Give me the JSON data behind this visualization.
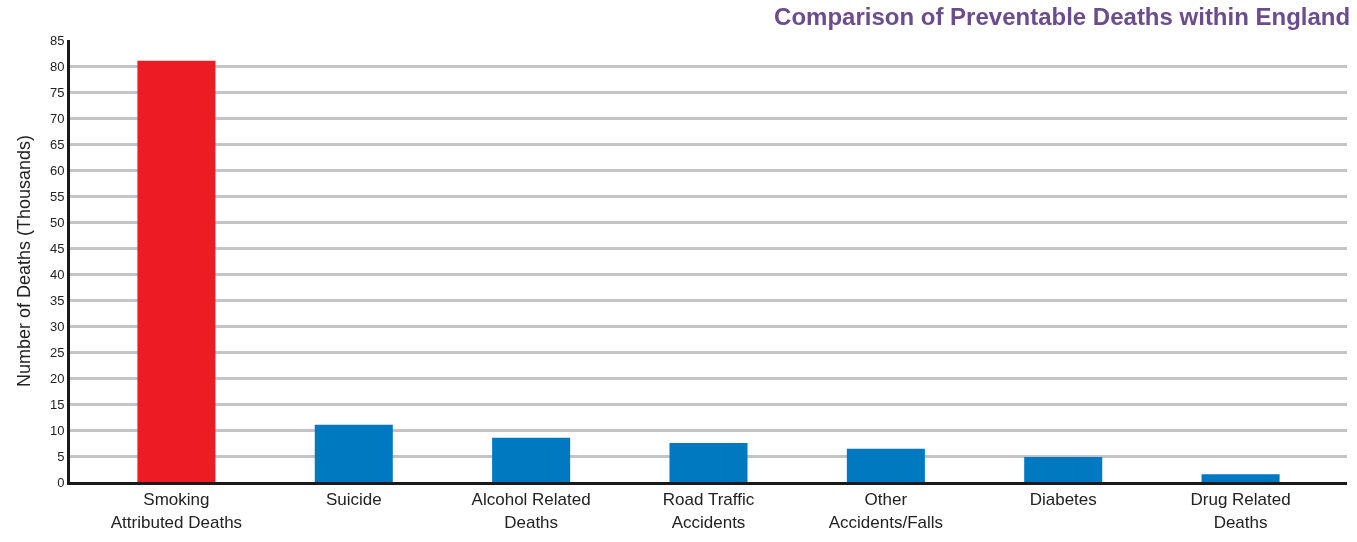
{
  "chart_data": {
    "type": "bar",
    "title": "Comparison of Preventable Deaths within England",
    "ylabel": "Number of Deaths (Thousands)",
    "categories": [
      "Smoking\nAttributed Deaths",
      "Suicide",
      "Alcohol Related\nDeaths",
      "Road Traffic\nAccidents",
      "Other\nAccidents/Falls",
      "Diabetes",
      "Drug Related\nDeaths"
    ],
    "values": [
      81,
      11,
      8.5,
      7.5,
      6.4,
      4.8,
      1.5
    ],
    "colors": [
      "#ed1c24",
      "#0079c1",
      "#0079c1",
      "#0079c1",
      "#0079c1",
      "#0079c1",
      "#0079c1"
    ],
    "ylim": [
      0,
      85
    ],
    "yticks": [
      0,
      5,
      10,
      15,
      20,
      25,
      30,
      35,
      40,
      45,
      50,
      55,
      60,
      65,
      70,
      75,
      80,
      85
    ],
    "grid": "y"
  }
}
